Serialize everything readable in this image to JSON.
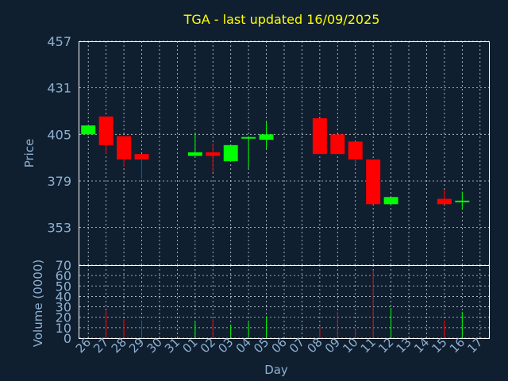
{
  "chart_data": {
    "type": "candlestick",
    "title": "TGA - last updated 16/09/2025",
    "price_axis": {
      "label": "Price",
      "ticks": [
        353,
        379,
        405,
        431,
        457
      ],
      "ylim": [
        332,
        457
      ]
    },
    "volume_axis": {
      "label": "Volume (0000)",
      "ticks": [
        0,
        10,
        20,
        30,
        40,
        50,
        60,
        70
      ],
      "ylim": [
        0,
        70
      ]
    },
    "x_axis": {
      "label": "Day",
      "tick_labels": [
        "26",
        "27",
        "28",
        "29",
        "30",
        "31",
        "01",
        "02",
        "03",
        "04",
        "05",
        "06",
        "07",
        "08",
        "09",
        "10",
        "11",
        "12",
        "13",
        "14",
        "15",
        "16",
        "17"
      ]
    },
    "grid": true,
    "colors": {
      "up": "#00ff00",
      "down": "#ff0000",
      "title": "#ffff00",
      "axis_text": "#8fb0d0",
      "background": "#0f1f30"
    },
    "candles": [
      {
        "day": 0,
        "open": 405,
        "high": 410,
        "low": 405,
        "close": 410,
        "volume": 0
      },
      {
        "day": 1,
        "open": 415,
        "high": 415,
        "low": 394,
        "close": 399,
        "volume": 26
      },
      {
        "day": 2,
        "open": 404,
        "high": 404,
        "low": 387,
        "close": 391,
        "volume": 18
      },
      {
        "day": 3,
        "open": 394,
        "high": 394,
        "low": 380,
        "close": 391,
        "volume": 17
      },
      {
        "day": 6,
        "open": 393,
        "high": 406,
        "low": 393,
        "close": 395,
        "volume": 16
      },
      {
        "day": 7,
        "open": 395,
        "high": 400,
        "low": 384,
        "close": 393,
        "volume": 18
      },
      {
        "day": 8,
        "open": 390,
        "high": 399,
        "low": 390,
        "close": 399,
        "volume": 13
      },
      {
        "day": 9,
        "open": 403,
        "high": 404,
        "low": 386,
        "close": 403.5,
        "volume": 15
      },
      {
        "day": 10,
        "open": 402,
        "high": 412,
        "low": 397,
        "close": 405,
        "volume": 21
      },
      {
        "day": 13,
        "open": 414,
        "high": 414,
        "low": 394,
        "close": 394,
        "volume": 11
      },
      {
        "day": 14,
        "open": 405,
        "high": 405,
        "low": 394,
        "close": 394,
        "volume": 25
      },
      {
        "day": 15,
        "open": 401,
        "high": 401,
        "low": 388,
        "close": 391,
        "volume": 9
      },
      {
        "day": 16,
        "open": 391,
        "high": 391,
        "low": 366,
        "close": 366,
        "volume": 65
      },
      {
        "day": 17,
        "open": 366,
        "high": 370,
        "low": 366,
        "close": 370,
        "volume": 29
      },
      {
        "day": 20,
        "open": 369,
        "high": 374,
        "low": 366,
        "close": 366,
        "volume": 17
      },
      {
        "day": 21,
        "open": 368,
        "high": 373,
        "low": 363,
        "close": 368,
        "volume": 25
      }
    ]
  }
}
